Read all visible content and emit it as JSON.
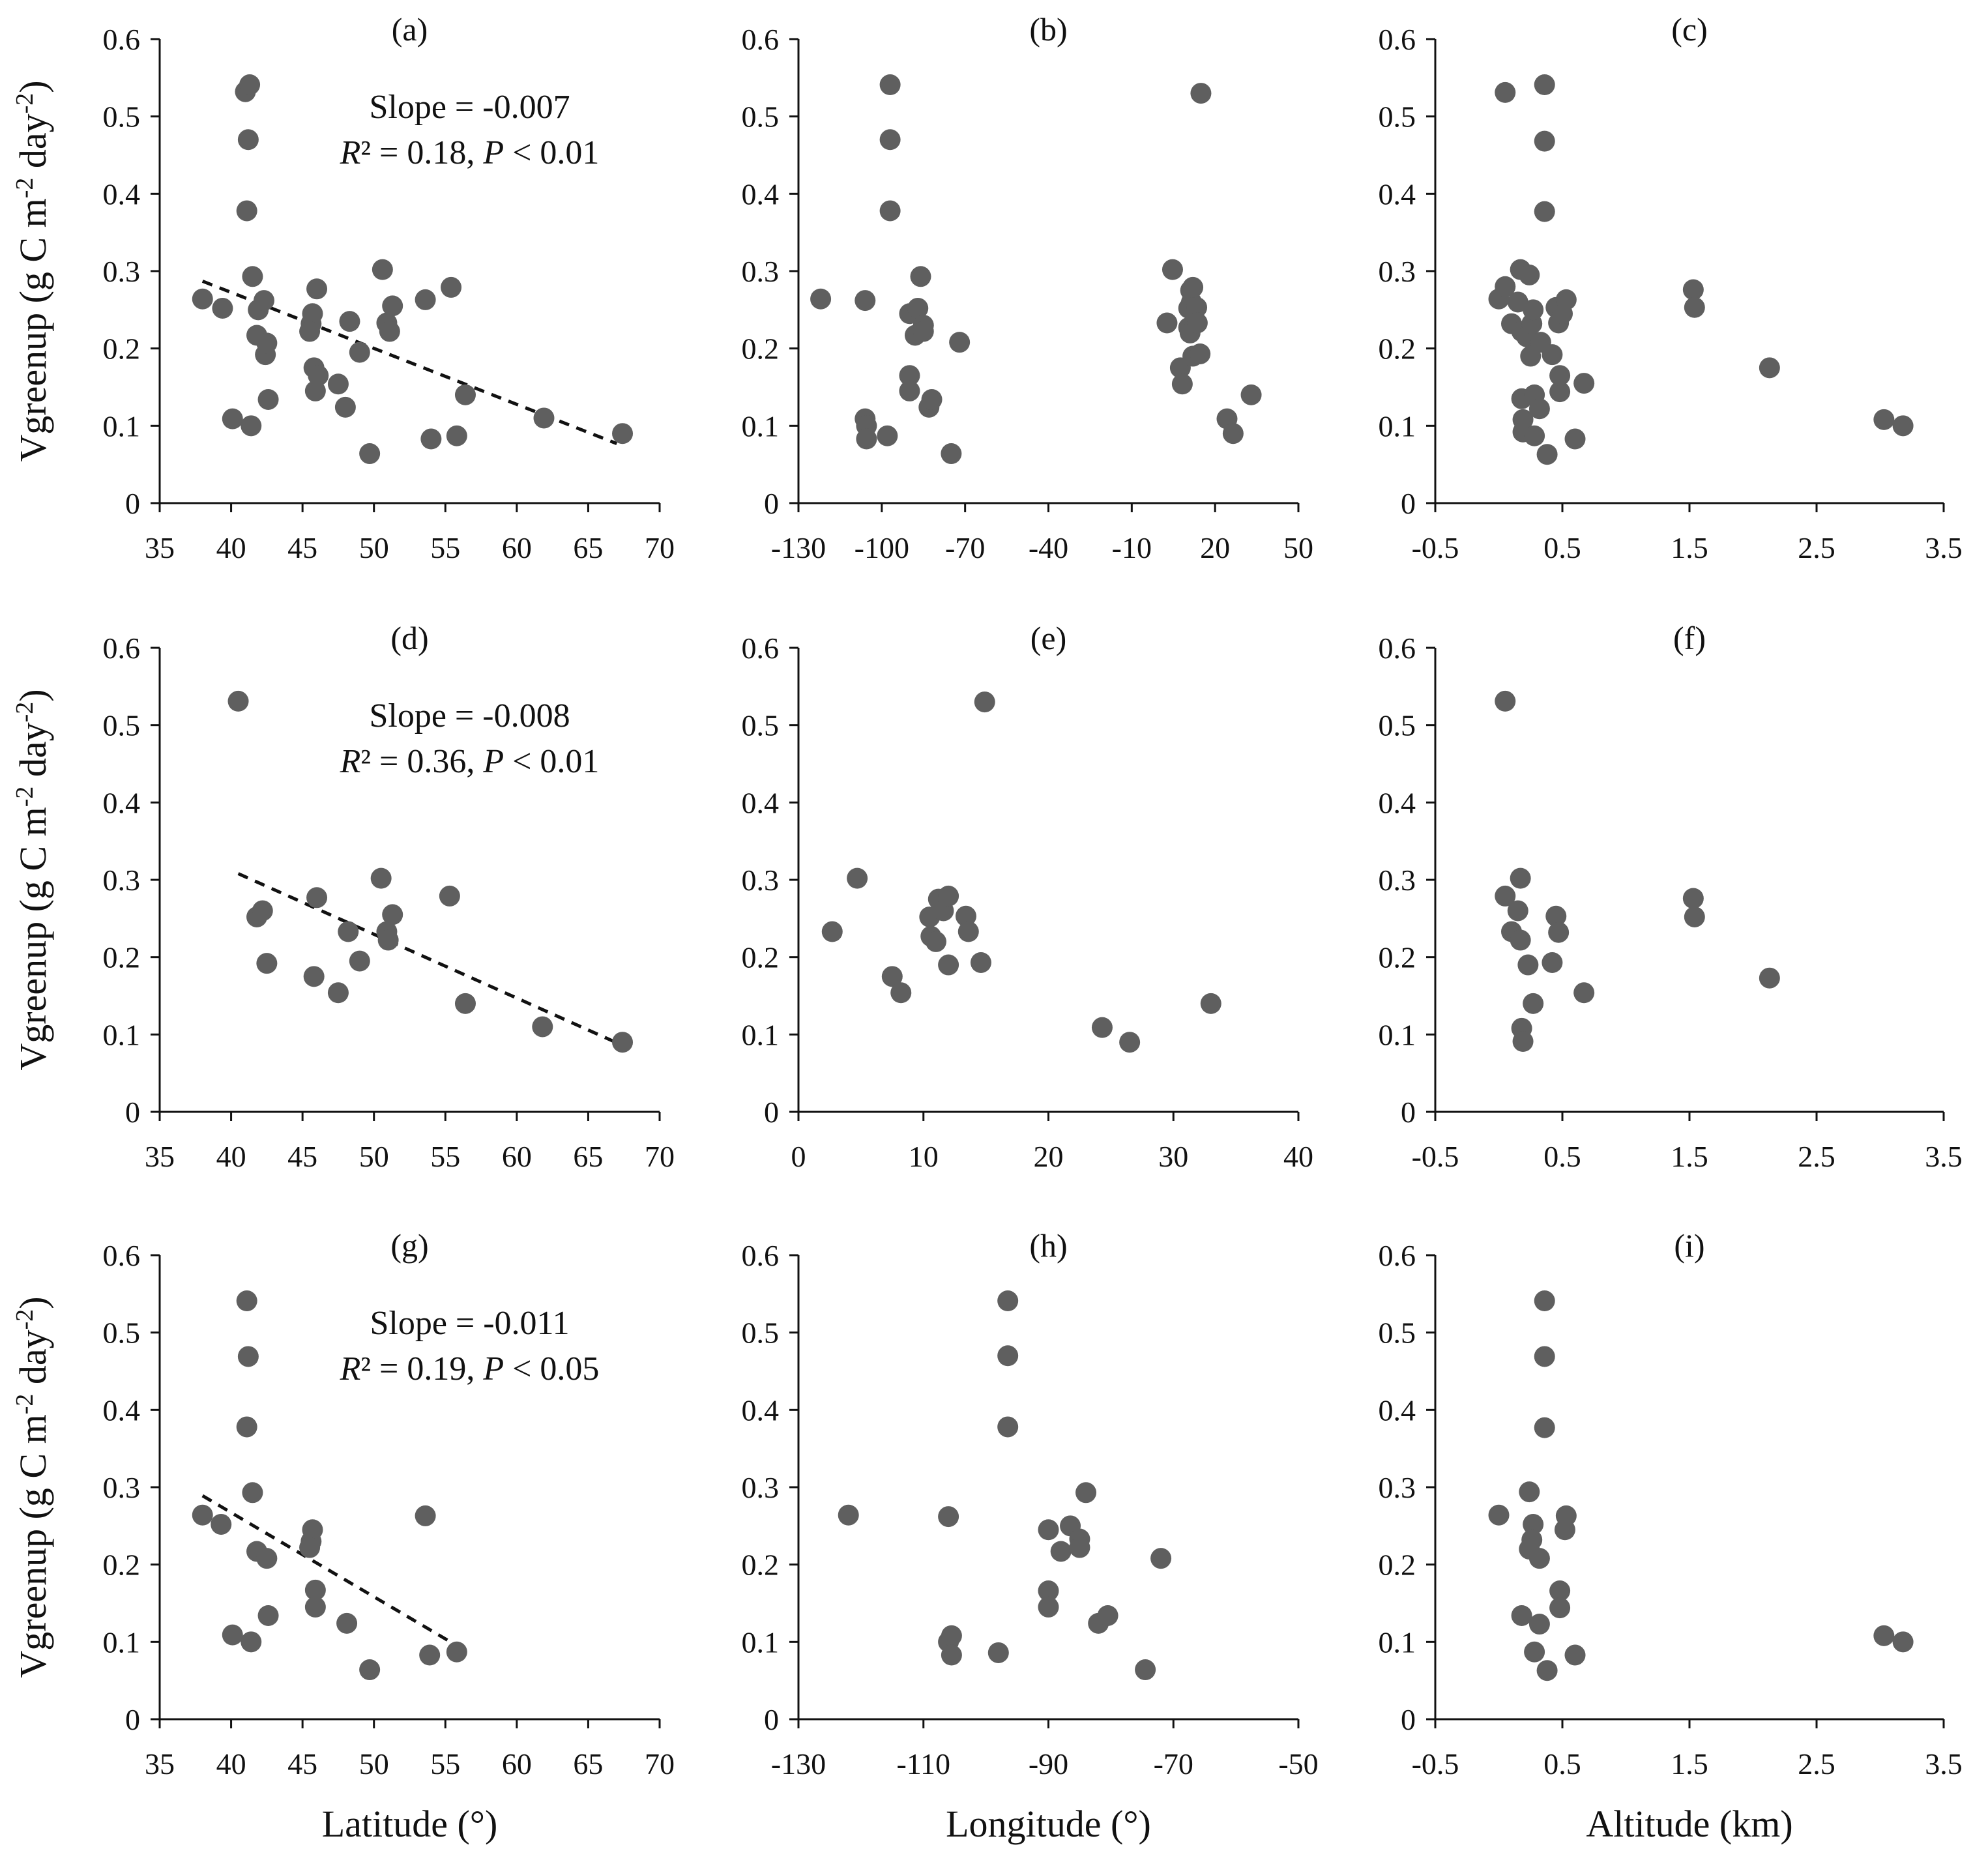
{
  "figure": {
    "y_axis_title": "Vgreenup (g C m-2 day-2)",
    "y_axis_title_parts": {
      "base": "Vgreenup (g C m",
      "exp1": "-2",
      "mid": " day",
      "exp2": "-2",
      "end": ")"
    },
    "x_axis_titles": [
      "Latitude (°)",
      "Longitude (°)",
      "Altitude (km)"
    ],
    "colors": {
      "marker": "#5f5f5f",
      "axis": "#111111",
      "trend": "#111111",
      "background": "#ffffff"
    }
  },
  "chart_data": [
    {
      "id": "a",
      "type": "scatter",
      "label": "(a)",
      "xlim": [
        35,
        70
      ],
      "xticks": [
        35,
        40,
        45,
        50,
        55,
        60,
        65,
        70
      ],
      "ylim": [
        0,
        0.6
      ],
      "yticks": [
        0,
        0.1,
        0.2,
        0.3,
        0.4,
        0.5,
        0.6
      ],
      "points": [
        [
          41.0,
          0.532
        ],
        [
          41.3,
          0.541
        ],
        [
          41.2,
          0.47
        ],
        [
          41.1,
          0.378
        ],
        [
          38.0,
          0.264
        ],
        [
          39.4,
          0.252
        ],
        [
          40.1,
          0.109
        ],
        [
          41.5,
          0.293
        ],
        [
          41.4,
          0.1
        ],
        [
          41.8,
          0.217
        ],
        [
          41.9,
          0.25
        ],
        [
          42.3,
          0.262
        ],
        [
          42.4,
          0.192
        ],
        [
          42.5,
          0.207
        ],
        [
          42.6,
          0.134
        ],
        [
          45.6,
          0.232
        ],
        [
          45.7,
          0.245
        ],
        [
          45.5,
          0.222
        ],
        [
          46.0,
          0.277
        ],
        [
          45.8,
          0.175
        ],
        [
          46.1,
          0.165
        ],
        [
          45.9,
          0.145
        ],
        [
          47.5,
          0.154
        ],
        [
          48.0,
          0.124
        ],
        [
          48.3,
          0.235
        ],
        [
          49.0,
          0.195
        ],
        [
          49.7,
          0.064
        ],
        [
          50.6,
          0.302
        ],
        [
          50.9,
          0.233
        ],
        [
          51.1,
          0.222
        ],
        [
          51.3,
          0.255
        ],
        [
          53.6,
          0.263
        ],
        [
          54.0,
          0.083
        ],
        [
          55.4,
          0.279
        ],
        [
          55.8,
          0.087
        ],
        [
          56.4,
          0.14
        ],
        [
          61.9,
          0.11
        ],
        [
          67.4,
          0.09
        ]
      ],
      "trend": {
        "x": [
          38,
          67
        ],
        "y": [
          0.287,
          0.077
        ]
      },
      "annotation": {
        "slope": "Slope = -0.007",
        "r2_value": " = 0.18, ",
        "p_value": " < 0.01"
      }
    },
    {
      "id": "b",
      "type": "scatter",
      "label": "(b)",
      "xlim": [
        -130,
        50
      ],
      "xticks": [
        -130,
        -100,
        -70,
        -40,
        -10,
        20,
        50
      ],
      "ylim": [
        0,
        0.6
      ],
      "yticks": [
        0,
        0.1,
        0.2,
        0.3,
        0.4,
        0.5,
        0.6
      ],
      "points": [
        [
          -122,
          0.264
        ],
        [
          -106,
          0.262
        ],
        [
          -106,
          0.109
        ],
        [
          -105.5,
          0.1
        ],
        [
          -105.5,
          0.083
        ],
        [
          -98,
          0.087
        ],
        [
          -97,
          0.541
        ],
        [
          -97,
          0.47
        ],
        [
          -97,
          0.378
        ],
        [
          -90,
          0.245
        ],
        [
          -90,
          0.165
        ],
        [
          -90,
          0.145
        ],
        [
          -88,
          0.217
        ],
        [
          -87,
          0.252
        ],
        [
          -86,
          0.293
        ],
        [
          -85,
          0.23
        ],
        [
          -85,
          0.222
        ],
        [
          -83,
          0.124
        ],
        [
          -82,
          0.134
        ],
        [
          -75,
          0.064
        ],
        [
          -72,
          0.208
        ],
        [
          2.7,
          0.233
        ],
        [
          4.7,
          0.302
        ],
        [
          7.5,
          0.175
        ],
        [
          8.2,
          0.154
        ],
        [
          10.5,
          0.252
        ],
        [
          10.5,
          0.227
        ],
        [
          11,
          0.22
        ],
        [
          11.2,
          0.275
        ],
        [
          11.5,
          0.26
        ],
        [
          12,
          0.279
        ],
        [
          12,
          0.19
        ],
        [
          13.4,
          0.253
        ],
        [
          13.6,
          0.233
        ],
        [
          14.6,
          0.193
        ],
        [
          14.9,
          0.53
        ],
        [
          24.3,
          0.109
        ],
        [
          26.5,
          0.09
        ],
        [
          33,
          0.14
        ]
      ]
    },
    {
      "id": "c",
      "type": "scatter",
      "label": "(c)",
      "xlim": [
        -0.5,
        3.5
      ],
      "xticks": [
        -0.5,
        0.5,
        1.5,
        2.5,
        3.5
      ],
      "ylim": [
        0,
        0.6
      ],
      "yticks": [
        0,
        0.1,
        0.2,
        0.3,
        0.4,
        0.5,
        0.6
      ],
      "points": [
        [
          0.05,
          0.531
        ],
        [
          0.36,
          0.541
        ],
        [
          0.36,
          0.468
        ],
        [
          0.36,
          0.377
        ],
        [
          0.0,
          0.264
        ],
        [
          0.05,
          0.28
        ],
        [
          0.1,
          0.232
        ],
        [
          0.15,
          0.26
        ],
        [
          0.17,
          0.302
        ],
        [
          0.18,
          0.222
        ],
        [
          0.18,
          0.135
        ],
        [
          0.19,
          0.108
        ],
        [
          0.19,
          0.092
        ],
        [
          0.22,
          0.215
        ],
        [
          0.24,
          0.295
        ],
        [
          0.25,
          0.19
        ],
        [
          0.26,
          0.232
        ],
        [
          0.27,
          0.25
        ],
        [
          0.28,
          0.14
        ],
        [
          0.28,
          0.087
        ],
        [
          0.32,
          0.122
        ],
        [
          0.33,
          0.208
        ],
        [
          0.38,
          0.063
        ],
        [
          0.42,
          0.192
        ],
        [
          0.45,
          0.253
        ],
        [
          0.47,
          0.233
        ],
        [
          0.48,
          0.144
        ],
        [
          0.48,
          0.165
        ],
        [
          0.5,
          0.245
        ],
        [
          0.53,
          0.263
        ],
        [
          0.6,
          0.083
        ],
        [
          0.67,
          0.155
        ],
        [
          1.53,
          0.276
        ],
        [
          1.54,
          0.253
        ],
        [
          2.13,
          0.175
        ],
        [
          3.03,
          0.108
        ],
        [
          3.18,
          0.1
        ]
      ]
    },
    {
      "id": "d",
      "type": "scatter",
      "label": "(d)",
      "xlim": [
        35,
        70
      ],
      "xticks": [
        35,
        40,
        45,
        50,
        55,
        60,
        65,
        70
      ],
      "ylim": [
        0,
        0.6
      ],
      "yticks": [
        0,
        0.1,
        0.2,
        0.3,
        0.4,
        0.5,
        0.6
      ],
      "points": [
        [
          40.5,
          0.531
        ],
        [
          41.8,
          0.252
        ],
        [
          42.2,
          0.26
        ],
        [
          42.5,
          0.192
        ],
        [
          45.8,
          0.175
        ],
        [
          46.0,
          0.277
        ],
        [
          47.5,
          0.154
        ],
        [
          48.2,
          0.233
        ],
        [
          49.0,
          0.195
        ],
        [
          50.5,
          0.302
        ],
        [
          50.9,
          0.233
        ],
        [
          51.0,
          0.222
        ],
        [
          51.3,
          0.255
        ],
        [
          55.3,
          0.279
        ],
        [
          56.4,
          0.14
        ],
        [
          61.8,
          0.11
        ],
        [
          67.4,
          0.09
        ]
      ],
      "trend": {
        "x": [
          40.5,
          67.4
        ],
        "y": [
          0.308,
          0.086
        ]
      },
      "annotation": {
        "slope": "Slope = -0.008",
        "r2_value": " = 0.36, ",
        "p_value": " < 0.01"
      }
    },
    {
      "id": "e",
      "type": "scatter",
      "label": "(e)",
      "xlim": [
        0,
        40
      ],
      "xticks": [
        0,
        10,
        20,
        30,
        40
      ],
      "ylim": [
        0,
        0.6
      ],
      "yticks": [
        0,
        0.1,
        0.2,
        0.3,
        0.4,
        0.5,
        0.6
      ],
      "points": [
        [
          2.7,
          0.233
        ],
        [
          4.7,
          0.302
        ],
        [
          7.5,
          0.175
        ],
        [
          8.2,
          0.154
        ],
        [
          10.5,
          0.252
        ],
        [
          10.6,
          0.227
        ],
        [
          11.0,
          0.22
        ],
        [
          11.2,
          0.275
        ],
        [
          11.6,
          0.26
        ],
        [
          12.0,
          0.279
        ],
        [
          12.0,
          0.19
        ],
        [
          13.4,
          0.253
        ],
        [
          13.6,
          0.233
        ],
        [
          14.6,
          0.193
        ],
        [
          14.9,
          0.53
        ],
        [
          24.3,
          0.109
        ],
        [
          26.5,
          0.09
        ],
        [
          33.0,
          0.14
        ]
      ]
    },
    {
      "id": "f",
      "type": "scatter",
      "label": "(f)",
      "xlim": [
        -0.5,
        3.5
      ],
      "xticks": [
        -0.5,
        0.5,
        1.5,
        2.5,
        3.5
      ],
      "ylim": [
        0,
        0.6
      ],
      "yticks": [
        0,
        0.1,
        0.2,
        0.3,
        0.4,
        0.5,
        0.6
      ],
      "points": [
        [
          0.05,
          0.531
        ],
        [
          0.05,
          0.279
        ],
        [
          0.1,
          0.233
        ],
        [
          0.15,
          0.26
        ],
        [
          0.17,
          0.302
        ],
        [
          0.17,
          0.222
        ],
        [
          0.18,
          0.108
        ],
        [
          0.19,
          0.091
        ],
        [
          0.23,
          0.19
        ],
        [
          0.27,
          0.14
        ],
        [
          0.42,
          0.193
        ],
        [
          0.45,
          0.253
        ],
        [
          0.47,
          0.232
        ],
        [
          0.67,
          0.154
        ],
        [
          1.53,
          0.276
        ],
        [
          1.54,
          0.252
        ],
        [
          2.13,
          0.173
        ]
      ]
    },
    {
      "id": "g",
      "type": "scatter",
      "label": "(g)",
      "xlim": [
        35,
        70
      ],
      "xticks": [
        35,
        40,
        45,
        50,
        55,
        60,
        65,
        70
      ],
      "ylim": [
        0,
        0.6
      ],
      "yticks": [
        0,
        0.1,
        0.2,
        0.3,
        0.4,
        0.5,
        0.6
      ],
      "points": [
        [
          38.0,
          0.264
        ],
        [
          39.3,
          0.252
        ],
        [
          40.1,
          0.109
        ],
        [
          41.1,
          0.541
        ],
        [
          41.2,
          0.469
        ],
        [
          41.1,
          0.378
        ],
        [
          41.5,
          0.293
        ],
        [
          41.4,
          0.1
        ],
        [
          41.8,
          0.217
        ],
        [
          42.5,
          0.208
        ],
        [
          42.6,
          0.134
        ],
        [
          45.6,
          0.23
        ],
        [
          45.7,
          0.245
        ],
        [
          45.5,
          0.222
        ],
        [
          45.9,
          0.167
        ],
        [
          45.9,
          0.145
        ],
        [
          48.1,
          0.124
        ],
        [
          49.7,
          0.064
        ],
        [
          53.6,
          0.263
        ],
        [
          53.9,
          0.083
        ],
        [
          55.8,
          0.087
        ]
      ],
      "trend": {
        "x": [
          38,
          56
        ],
        "y": [
          0.289,
          0.093
        ]
      },
      "annotation": {
        "slope": "Slope = -0.011",
        "r2_value": " = 0.19, ",
        "p_value": " < 0.05"
      }
    },
    {
      "id": "h",
      "type": "scatter",
      "label": "(h)",
      "xlim": [
        -130,
        -50
      ],
      "xticks": [
        -130,
        -110,
        -90,
        -70,
        -50
      ],
      "ylim": [
        0,
        0.6
      ],
      "yticks": [
        0,
        0.1,
        0.2,
        0.3,
        0.4,
        0.5,
        0.6
      ],
      "points": [
        [
          -122,
          0.264
        ],
        [
          -106,
          0.262
        ],
        [
          -106,
          0.1
        ],
        [
          -105.5,
          0.108
        ],
        [
          -105.5,
          0.083
        ],
        [
          -98,
          0.086
        ],
        [
          -96.5,
          0.541
        ],
        [
          -96.5,
          0.47
        ],
        [
          -96.5,
          0.378
        ],
        [
          -90,
          0.245
        ],
        [
          -90,
          0.166
        ],
        [
          -90,
          0.145
        ],
        [
          -88,
          0.217
        ],
        [
          -86.5,
          0.25
        ],
        [
          -85,
          0.233
        ],
        [
          -85,
          0.222
        ],
        [
          -84,
          0.293
        ],
        [
          -82,
          0.124
        ],
        [
          -80.5,
          0.134
        ],
        [
          -74.5,
          0.064
        ],
        [
          -72,
          0.208
        ]
      ]
    },
    {
      "id": "i",
      "type": "scatter",
      "label": "(i)",
      "xlim": [
        -0.5,
        3.5
      ],
      "xticks": [
        -0.5,
        0.5,
        1.5,
        2.5,
        3.5
      ],
      "ylim": [
        0,
        0.6
      ],
      "yticks": [
        0,
        0.1,
        0.2,
        0.3,
        0.4,
        0.5,
        0.6
      ],
      "points": [
        [
          0.36,
          0.541
        ],
        [
          0.36,
          0.469
        ],
        [
          0.36,
          0.377
        ],
        [
          0.0,
          0.264
        ],
        [
          0.24,
          0.294
        ],
        [
          0.27,
          0.252
        ],
        [
          0.26,
          0.232
        ],
        [
          0.24,
          0.22
        ],
        [
          0.32,
          0.208
        ],
        [
          0.18,
          0.134
        ],
        [
          0.32,
          0.123
        ],
        [
          0.28,
          0.087
        ],
        [
          0.38,
          0.063
        ],
        [
          0.53,
          0.263
        ],
        [
          0.52,
          0.245
        ],
        [
          0.48,
          0.166
        ],
        [
          0.48,
          0.144
        ],
        [
          0.6,
          0.083
        ],
        [
          3.03,
          0.108
        ],
        [
          3.18,
          0.1
        ]
      ]
    }
  ]
}
